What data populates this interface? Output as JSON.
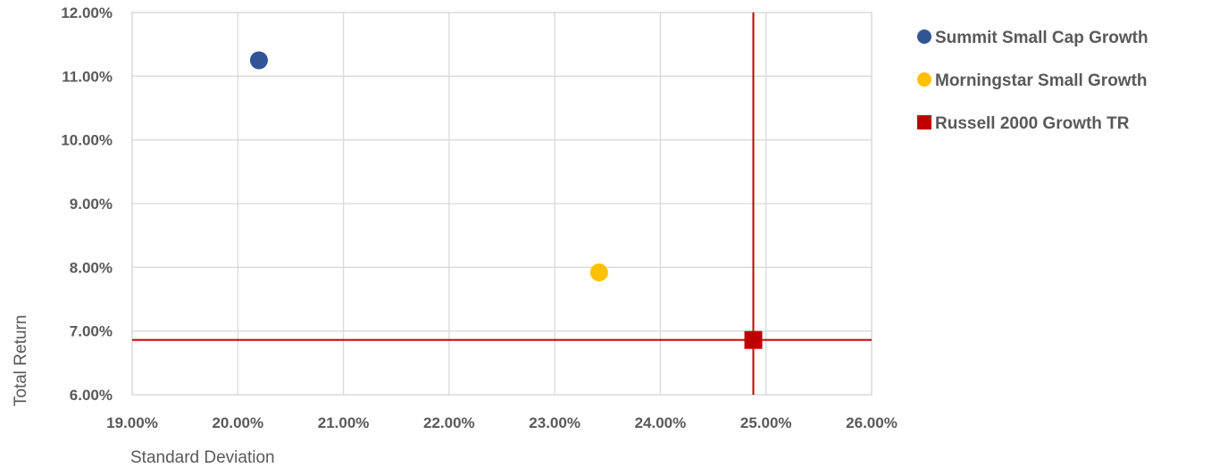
{
  "chart_data": {
    "type": "scatter",
    "title": "",
    "xlabel": "Standard Deviation",
    "ylabel": "Total Return",
    "xlim": [
      19.0,
      26.0
    ],
    "ylim": [
      6.0,
      12.0
    ],
    "x_ticks": [
      19,
      20,
      21,
      22,
      23,
      24,
      25,
      26
    ],
    "y_ticks": [
      6,
      7,
      8,
      9,
      10,
      11,
      12
    ],
    "x_tick_labels": [
      "19.00%",
      "20.00%",
      "21.00%",
      "22.00%",
      "23.00%",
      "24.00%",
      "25.00%",
      "26.00%"
    ],
    "y_tick_labels": [
      "6.00%",
      "7.00%",
      "8.00%",
      "9.00%",
      "10.00%",
      "11.00%",
      "12.00%"
    ],
    "grid": true,
    "legend_position": "right",
    "series": [
      {
        "name": "Summit Small Cap Growth",
        "marker": "circle",
        "color": "#2f5597",
        "x": [
          20.2
        ],
        "y": [
          11.25
        ]
      },
      {
        "name": "Morningstar Small Growth",
        "marker": "circle",
        "color": "#ffc000",
        "x": [
          23.42
        ],
        "y": [
          7.92
        ]
      },
      {
        "name": "Russell 2000 Growth TR",
        "marker": "square",
        "color": "#c00000",
        "x": [
          24.88
        ],
        "y": [
          6.86
        ]
      }
    ],
    "reference_lines": {
      "color": "#c00000",
      "vertical_x": 24.88,
      "horizontal_y": 6.86
    }
  }
}
